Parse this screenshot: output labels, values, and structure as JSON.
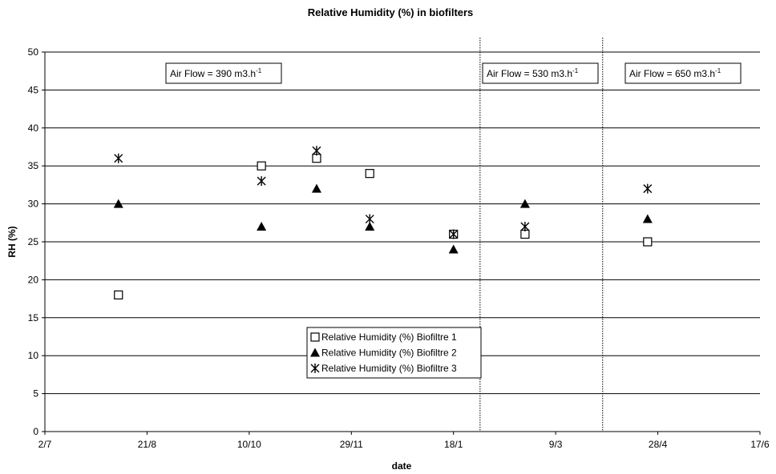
{
  "chart_data": {
    "type": "scatter",
    "title": "Relative Humidity (%) in biofilters",
    "xlabel": "date",
    "ylabel": "RH (%)",
    "ylim": [
      0,
      50
    ],
    "yticks": [
      "0",
      "5",
      "10",
      "15",
      "20",
      "25",
      "30",
      "35",
      "40",
      "45",
      "50"
    ],
    "xticks": [
      "2/7",
      "21/8",
      "10/10",
      "29/11",
      "18/1",
      "9/3",
      "28/4",
      "17/6"
    ],
    "xtick_values": [
      "2000-07-02",
      "2000-08-21",
      "2000-10-10",
      "2000-11-29",
      "2001-01-18",
      "2001-03-09",
      "2001-04-28",
      "2001-06-17"
    ],
    "xlim": [
      "2000-07-02",
      "2001-06-17"
    ],
    "grid": "horizontal",
    "legend_position": "bottom-center",
    "series": [
      {
        "name": "Relative Humidity (%) Biofiltre 1",
        "marker": "open-square",
        "x": [
          "2000-08-07",
          "2000-10-16",
          "2000-11-12",
          "2000-12-08",
          "2001-01-18",
          "2001-02-22",
          "2001-04-23"
        ],
        "y": [
          18,
          35,
          36,
          34,
          26,
          26,
          25
        ]
      },
      {
        "name": "Relative Humidity (%) Biofiltre 2",
        "marker": "filled-triangle",
        "x": [
          "2000-08-07",
          "2000-10-16",
          "2000-11-12",
          "2000-12-08",
          "2001-01-18",
          "2001-02-22",
          "2001-04-23"
        ],
        "y": [
          30,
          27,
          32,
          27,
          24,
          30,
          28
        ]
      },
      {
        "name": "Relative Humidity (%) Biofiltre 3",
        "marker": "asterisk",
        "x": [
          "2000-08-07",
          "2000-10-16",
          "2000-11-12",
          "2000-12-08",
          "2001-01-18",
          "2001-02-22",
          "2001-04-23"
        ],
        "y": [
          36,
          33,
          37,
          28,
          26,
          27,
          32
        ]
      }
    ],
    "vertical_lines": [
      "2001-01-31",
      "2001-04-01"
    ],
    "annotations": [
      {
        "text": "Air Flow = 390 m3.h",
        "sup": "-1"
      },
      {
        "text": "Air Flow = 530 m3.h",
        "sup": "-1"
      },
      {
        "text": "Air Flow = 650 m3.h",
        "sup": "-1"
      }
    ]
  }
}
